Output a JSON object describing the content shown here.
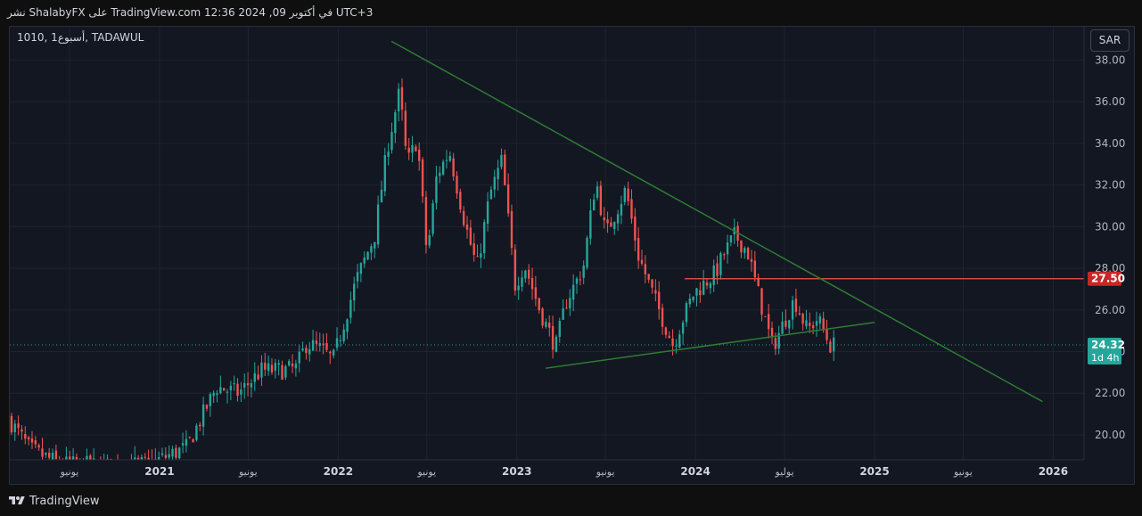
{
  "header": {
    "published_line": "نشر ShalabyFX على TradingView.com 12:36 2024 ,09 في أكتوبر UTC+3"
  },
  "symbol": {
    "label": "1010, 1أسبوع, TADAWUL"
  },
  "currency_button": {
    "label": "SAR"
  },
  "footer": {
    "brand": "TradingView"
  },
  "colors": {
    "background": "#131722",
    "grid": "#1f2330",
    "up_candle": "#26a69a",
    "down_candle": "#ef5350",
    "trendline": "#2e7d32",
    "resistance_line": "#ef5350",
    "price_badge": "#26a69a",
    "level_badge": "#c62828"
  },
  "chart_data": {
    "type": "candlestick",
    "title": "",
    "xlabel": "",
    "ylabel": "",
    "currency": "SAR",
    "interval": "1W",
    "ylim": [
      18.8,
      39.6
    ],
    "y_ticks": [
      "20.00",
      "22.00",
      "24.00",
      "26.00",
      "28.00",
      "30.00",
      "32.00",
      "34.00",
      "36.00",
      "38.00"
    ],
    "x_ticks": [
      {
        "date": "2020-07-01",
        "label": "يونيو",
        "major": false
      },
      {
        "date": "2021-01-01",
        "label": "2021",
        "major": true
      },
      {
        "date": "2021-07-01",
        "label": "يونيو",
        "major": false
      },
      {
        "date": "2022-01-01",
        "label": "2022",
        "major": true
      },
      {
        "date": "2022-07-01",
        "label": "يونيو",
        "major": false
      },
      {
        "date": "2023-01-01",
        "label": "2023",
        "major": true
      },
      {
        "date": "2023-07-01",
        "label": "يونيو",
        "major": false
      },
      {
        "date": "2024-01-01",
        "label": "2024",
        "major": true
      },
      {
        "date": "2024-07-01",
        "label": "يوليو",
        "major": false
      },
      {
        "date": "2025-01-01",
        "label": "2025",
        "major": true
      },
      {
        "date": "2025-07-01",
        "label": "يونيو",
        "major": false
      },
      {
        "date": "2026-01-01",
        "label": "2026",
        "major": true
      }
    ],
    "xlim": [
      "2020-03-01",
      "2026-03-05"
    ],
    "price_path": [
      [
        "2020-03-01",
        20.8
      ],
      [
        "2020-04-15",
        19.3
      ],
      [
        "2020-06-15",
        18.6
      ],
      [
        "2020-09-15",
        18.5
      ],
      [
        "2020-12-15",
        18.6
      ],
      [
        "2021-03-01",
        19.4
      ],
      [
        "2021-05-01",
        22.3
      ],
      [
        "2021-06-15",
        22.0
      ],
      [
        "2021-08-01",
        23.1
      ],
      [
        "2021-09-15",
        23.1
      ],
      [
        "2021-10-10",
        23.2
      ],
      [
        "2021-11-01",
        24.4
      ],
      [
        "2021-12-01",
        24.1
      ],
      [
        "2021-12-25",
        23.6
      ],
      [
        "2022-02-10",
        27.4
      ],
      [
        "2022-03-20",
        29.6
      ],
      [
        "2022-04-15",
        33.8
      ],
      [
        "2022-05-10",
        36.5
      ],
      [
        "2022-05-25",
        33.0
      ],
      [
        "2022-06-15",
        34.2
      ],
      [
        "2022-07-05",
        28.6
      ],
      [
        "2022-07-25",
        32.5
      ],
      [
        "2022-08-20",
        33.6
      ],
      [
        "2022-09-20",
        30.2
      ],
      [
        "2022-10-15",
        28.0
      ],
      [
        "2022-11-10",
        31.5
      ],
      [
        "2022-12-05",
        33.2
      ],
      [
        "2023-01-01",
        27.2
      ],
      [
        "2023-01-20",
        28.2
      ],
      [
        "2023-02-20",
        26.0
      ],
      [
        "2023-03-25",
        24.2
      ],
      [
        "2023-04-15",
        26.4
      ],
      [
        "2023-05-20",
        28.0
      ],
      [
        "2023-06-15",
        32.3
      ],
      [
        "2023-07-05",
        29.6
      ],
      [
        "2023-08-15",
        31.8
      ],
      [
        "2023-09-10",
        28.6
      ],
      [
        "2023-10-15",
        26.4
      ],
      [
        "2023-11-20",
        24.3
      ],
      [
        "2023-12-10",
        25.6
      ],
      [
        "2024-01-01",
        26.8
      ],
      [
        "2024-02-15",
        27.8
      ],
      [
        "2024-03-01",
        28.6
      ],
      [
        "2024-03-25",
        29.6
      ],
      [
        "2024-04-20",
        28.8
      ],
      [
        "2024-05-15",
        26.5
      ],
      [
        "2024-06-10",
        24.2
      ],
      [
        "2024-07-05",
        25.5
      ],
      [
        "2024-07-25",
        26.5
      ],
      [
        "2024-08-20",
        25.0
      ],
      [
        "2024-09-10",
        25.6
      ],
      [
        "2024-10-06",
        24.3
      ]
    ],
    "current_price": 24.32,
    "countdown": "1d 4h",
    "levels": [
      {
        "name": "resistance",
        "value": 27.5,
        "label": "27.50",
        "from": "2023-12-10",
        "to": "2026-03-05"
      }
    ],
    "trendlines": [
      {
        "name": "descending",
        "from": [
          "2022-04-20",
          38.9
        ],
        "to": [
          "2025-12-10",
          21.6
        ]
      },
      {
        "name": "ascending",
        "from": [
          "2023-03-01",
          23.2
        ],
        "to": [
          "2025-01-01",
          25.4
        ]
      }
    ]
  }
}
